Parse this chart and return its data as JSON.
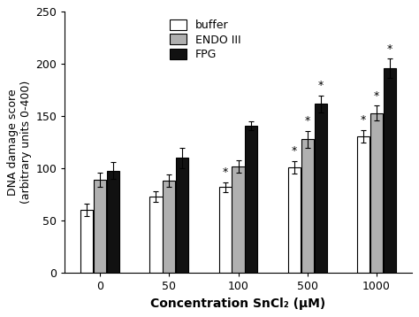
{
  "categories": [
    "0",
    "50",
    "100",
    "500",
    "1000"
  ],
  "buffer_values": [
    60,
    73,
    82,
    101,
    131
  ],
  "endo_values": [
    89,
    88,
    102,
    128,
    153
  ],
  "fpg_values": [
    98,
    110,
    141,
    162,
    196
  ],
  "buffer_errors": [
    6,
    5,
    5,
    6,
    6
  ],
  "endo_errors": [
    7,
    6,
    6,
    8,
    7
  ],
  "fpg_errors": [
    8,
    10,
    4,
    8,
    9
  ],
  "buffer_color": "#ffffff",
  "endo_color": "#b0b0b0",
  "fpg_color": "#111111",
  "bar_edge_color": "#000000",
  "ylabel": "DNA damage score\n(arbitrary units 0-400)",
  "xlabel": "Concentration SnCl₂ (μM)",
  "ylim": [
    0,
    250
  ],
  "yticks": [
    0,
    50,
    100,
    150,
    200,
    250
  ],
  "legend_labels": [
    "buffer",
    "ENDO III",
    "FPG"
  ],
  "significance_buffer": [
    false,
    false,
    true,
    true,
    true
  ],
  "significance_endo": [
    false,
    false,
    false,
    true,
    true
  ],
  "significance_fpg": [
    false,
    false,
    false,
    true,
    true
  ]
}
